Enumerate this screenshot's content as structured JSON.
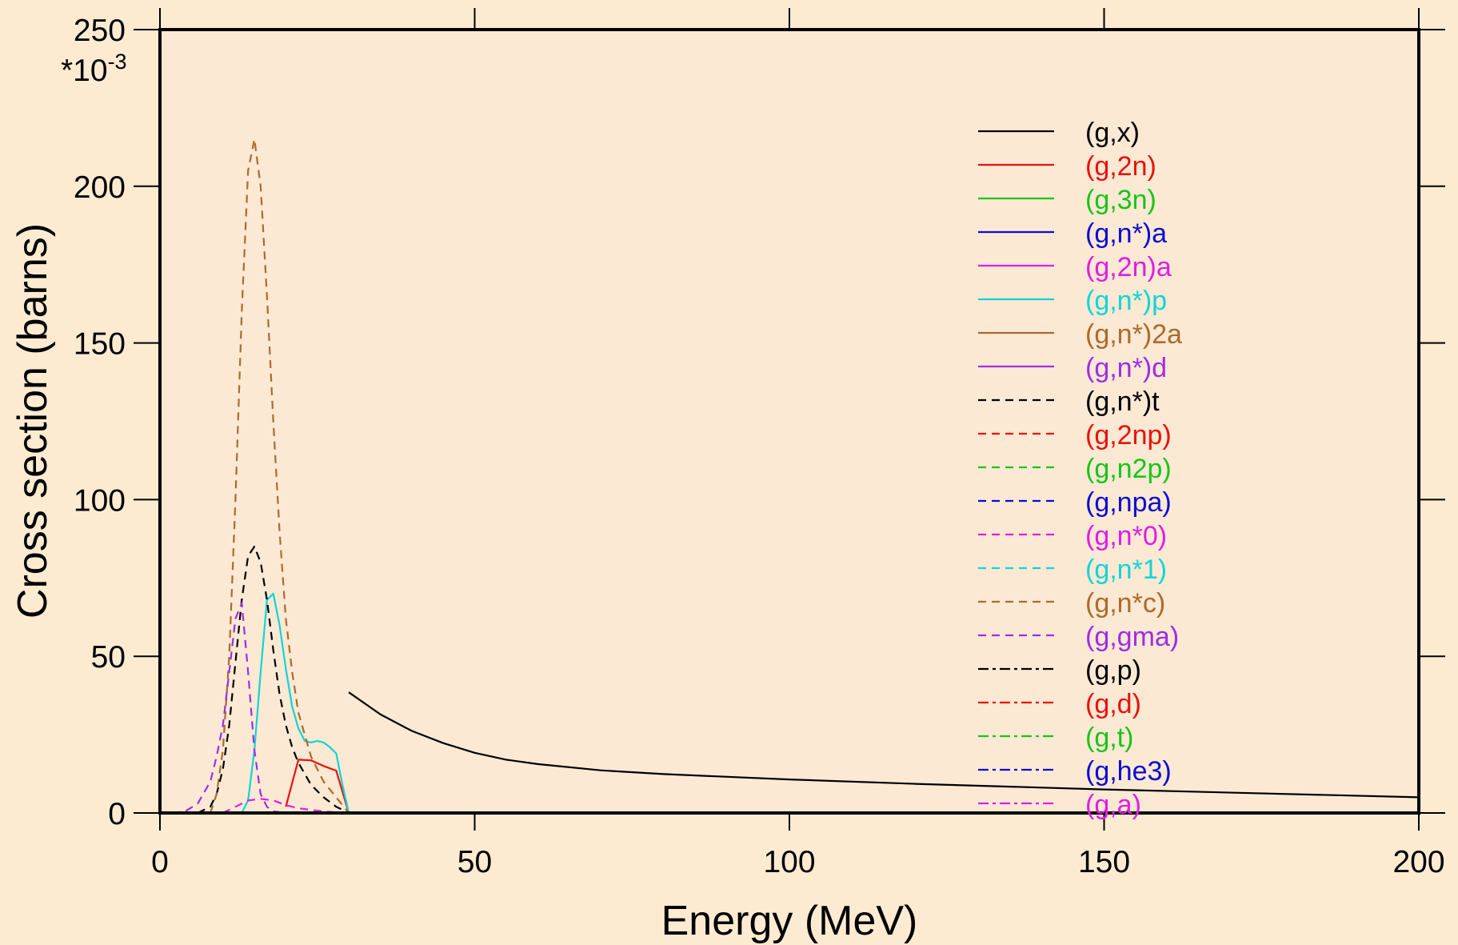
{
  "chart_data": {
    "type": "line",
    "xlabel": "Energy (MeV)",
    "ylabel": "Cross section (barns)",
    "y_multiplier": "*10",
    "y_exponent": "-3",
    "xlim": [
      0,
      200
    ],
    "ylim": [
      0,
      250
    ],
    "xticks": [
      0,
      50,
      100,
      150,
      200
    ],
    "yticks": [
      0,
      50,
      100,
      150,
      200,
      250
    ],
    "grid": false,
    "legend_position": "top-right",
    "colors": {
      "background": "#fdebd1",
      "plot_background": "#fbe9d4",
      "black": "#000000",
      "red": "#e8120d",
      "green": "#19c419",
      "blue": "#0c0ccf",
      "magenta": "#e11ee1",
      "cyan": "#14d4d4",
      "brown": "#ac6a2c",
      "purple": "#9d2ee3"
    },
    "series": [
      {
        "name": "(g,x)",
        "color": "#000000",
        "dash": "solid",
        "x": [
          30,
          35,
          40,
          45,
          50,
          55,
          60,
          70,
          80,
          100,
          120,
          150,
          200
        ],
        "y": [
          38.5,
          31.5,
          26.2,
          22.3,
          19.2,
          17.0,
          15.6,
          13.6,
          12.4,
          10.7,
          9.3,
          7.5,
          5.0
        ]
      },
      {
        "name": "(g,2n)",
        "color": "#e8120d",
        "dash": "solid",
        "x": [
          20,
          22,
          24,
          26,
          28,
          30
        ],
        "y": [
          2,
          17,
          16.8,
          15,
          13.5,
          0
        ]
      },
      {
        "name": "(g,3n)",
        "color": "#19c419",
        "dash": "solid",
        "x": [
          0,
          200
        ],
        "y": [
          0,
          0
        ]
      },
      {
        "name": "(g,n*)a",
        "color": "#0c0ccf",
        "dash": "solid",
        "x": [
          0,
          200
        ],
        "y": [
          0,
          0
        ]
      },
      {
        "name": "(g,2n)a",
        "color": "#e11ee1",
        "dash": "solid",
        "x": [
          0,
          200
        ],
        "y": [
          0,
          0
        ]
      },
      {
        "name": "(g,n*)p",
        "color": "#14d4d4",
        "dash": "solid",
        "x": [
          13,
          14,
          15,
          16,
          17,
          18,
          19,
          20,
          21,
          22,
          23,
          24,
          25,
          26,
          27,
          28,
          29,
          30
        ],
        "y": [
          0,
          4,
          20,
          45,
          68,
          70,
          60,
          46,
          34,
          27,
          23,
          22.5,
          23,
          22.5,
          21,
          19,
          9,
          0
        ]
      },
      {
        "name": "(g,n*)2a",
        "color": "#ac6a2c",
        "dash": "solid",
        "x": [
          0,
          200
        ],
        "y": [
          0,
          0
        ]
      },
      {
        "name": "(g,n*)d",
        "color": "#9d2ee3",
        "dash": "solid",
        "x": [
          0,
          200
        ],
        "y": [
          0,
          0
        ]
      },
      {
        "name": "(g,n*)t",
        "color": "#000000",
        "dash": "dash",
        "x": [
          6,
          8,
          9,
          10,
          11,
          12,
          13,
          14,
          15,
          16,
          17,
          18,
          19,
          20,
          21,
          22,
          24,
          26,
          28,
          30
        ],
        "y": [
          0,
          2,
          6,
          14,
          28,
          48,
          68,
          82,
          85,
          80,
          68,
          52,
          38,
          28,
          21,
          16,
          9,
          5,
          2,
          0
        ]
      },
      {
        "name": "(g,2np)",
        "color": "#e8120d",
        "dash": "dash",
        "x": [
          0,
          200
        ],
        "y": [
          0,
          0
        ]
      },
      {
        "name": "(g,n2p)",
        "color": "#19c419",
        "dash": "dash",
        "x": [
          0,
          200
        ],
        "y": [
          0,
          0
        ]
      },
      {
        "name": "(g,npa)",
        "color": "#0c0ccf",
        "dash": "dash",
        "x": [
          0,
          200
        ],
        "y": [
          0,
          0
        ]
      },
      {
        "name": "(g,n*0)",
        "color": "#e11ee1",
        "dash": "dash",
        "x": [
          10,
          12,
          14,
          16,
          18,
          20,
          22,
          24,
          26,
          28,
          30
        ],
        "y": [
          0,
          2,
          4,
          4.5,
          4,
          2.5,
          1.5,
          1,
          0.5,
          0.2,
          0
        ]
      },
      {
        "name": "(g,n*1)",
        "color": "#14d4d4",
        "dash": "dash",
        "x": [
          0,
          200
        ],
        "y": [
          0,
          0
        ]
      },
      {
        "name": "(g,n*c)",
        "color": "#ac6a2c",
        "dash": "dash",
        "x": [
          8,
          9,
          10,
          11,
          12,
          13,
          14,
          15,
          16,
          17,
          18,
          19,
          20,
          21,
          22,
          24,
          26,
          28,
          30
        ],
        "y": [
          0,
          6,
          20,
          50,
          100,
          160,
          205,
          215,
          200,
          165,
          125,
          90,
          62,
          45,
          32,
          18,
          10,
          5,
          0
        ]
      },
      {
        "name": "(g,gma)",
        "color": "#9d2ee3",
        "dash": "dash",
        "x": [
          2,
          4,
          6,
          8,
          9,
          10,
          11,
          12,
          13,
          14,
          15,
          16,
          17,
          18,
          20
        ],
        "y": [
          0,
          0.5,
          3,
          10,
          18,
          28,
          45,
          62,
          67,
          45,
          20,
          6,
          2,
          0.5,
          0
        ]
      },
      {
        "name": "(g,p)",
        "color": "#000000",
        "dash": "dashdot",
        "x": [
          0,
          200
        ],
        "y": [
          0,
          0
        ]
      },
      {
        "name": "(g,d)",
        "color": "#e8120d",
        "dash": "dashdot",
        "x": [
          0,
          200
        ],
        "y": [
          0,
          0
        ]
      },
      {
        "name": "(g,t)",
        "color": "#19c419",
        "dash": "dashdot",
        "x": [
          0,
          200
        ],
        "y": [
          0,
          0
        ]
      },
      {
        "name": "(g,he3)",
        "color": "#0c0ccf",
        "dash": "dashdot",
        "x": [
          0,
          200
        ],
        "y": [
          0,
          0
        ]
      },
      {
        "name": "(g,a)",
        "color": "#e11ee1",
        "dash": "dashdot",
        "x": [
          0,
          200
        ],
        "y": [
          0,
          0
        ]
      }
    ]
  }
}
